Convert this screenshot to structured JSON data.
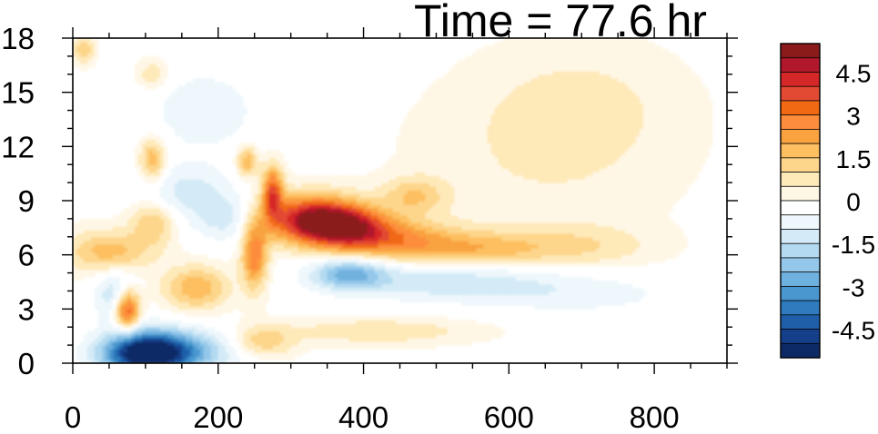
{
  "title": "Time = 77.6 hr",
  "chart_data": {
    "type": "heatmap",
    "title": "Time = 77.6 hr",
    "xlabel": "",
    "ylabel": "",
    "xlim": [
      0,
      900
    ],
    "ylim": [
      0,
      18
    ],
    "x_ticks": [
      0,
      200,
      400,
      600,
      800
    ],
    "y_ticks": [
      0,
      3,
      6,
      9,
      12,
      15,
      18
    ],
    "grid": false,
    "colorbar": {
      "placement": "right",
      "levels": [
        -5.5,
        -5,
        -4.5,
        -4,
        -3.5,
        -3,
        -2.5,
        -2,
        -1.5,
        -1,
        -0.5,
        0,
        0.5,
        1,
        1.5,
        2,
        2.5,
        3,
        3.5,
        4,
        4.5,
        5,
        5.5
      ],
      "labels": [
        "4.5",
        "3",
        "1.5",
        "0",
        "-1.5",
        "-3",
        "-4.5"
      ],
      "label_values": [
        4.5,
        3,
        1.5,
        0,
        -1.5,
        -3,
        -4.5
      ],
      "colors": [
        "#8b1a1a",
        "#b2182b",
        "#d62728",
        "#e34a33",
        "#f16913",
        "#fd8d3c",
        "#f9a23f",
        "#fdbf60",
        "#fdd68b",
        "#fee9b9",
        "#fff7e6",
        "#ffffff",
        "#eef7fc",
        "#d4ebf7",
        "#b4daf1",
        "#94c8ea",
        "#6fb1de",
        "#4a97cf",
        "#2f7bbd",
        "#1f5ea8",
        "#163f8a",
        "#0d2a66"
      ]
    },
    "features": [
      {
        "x": 330,
        "y": 8.0,
        "sx": 45,
        "sy": 0.9,
        "v": 4.8
      },
      {
        "x": 380,
        "y": 7.5,
        "sx": 40,
        "sy": 0.8,
        "v": 3.5
      },
      {
        "x": 450,
        "y": 6.8,
        "sx": 55,
        "sy": 0.8,
        "v": 2.3
      },
      {
        "x": 560,
        "y": 6.3,
        "sx": 60,
        "sy": 0.7,
        "v": 1.6
      },
      {
        "x": 690,
        "y": 6.5,
        "sx": 70,
        "sy": 0.8,
        "v": 1.0
      },
      {
        "x": 470,
        "y": 9.3,
        "sx": 30,
        "sy": 0.7,
        "v": 1.5
      },
      {
        "x": 650,
        "y": 11.5,
        "sx": 120,
        "sy": 3.0,
        "v": 0.5
      },
      {
        "x": 700,
        "y": 14.5,
        "sx": 90,
        "sy": 2.2,
        "v": 0.5
      },
      {
        "x": 510,
        "y": 4.6,
        "sx": 110,
        "sy": 0.8,
        "v": -1.4
      },
      {
        "x": 380,
        "y": 5.0,
        "sx": 35,
        "sy": 0.6,
        "v": -2.4
      },
      {
        "x": 700,
        "y": 3.8,
        "sx": 100,
        "sy": 0.8,
        "v": -0.7
      },
      {
        "x": 100,
        "y": 0.5,
        "sx": 40,
        "sy": 0.9,
        "v": -4.8
      },
      {
        "x": 140,
        "y": 0.7,
        "sx": 60,
        "sy": 0.8,
        "v": -2.5
      },
      {
        "x": 75,
        "y": 3.0,
        "sx": 12,
        "sy": 0.8,
        "v": 4.0
      },
      {
        "x": 170,
        "y": 4.2,
        "sx": 30,
        "sy": 0.8,
        "v": 2.0
      },
      {
        "x": 250,
        "y": 6.0,
        "sx": 12,
        "sy": 1.3,
        "v": 3.0
      },
      {
        "x": 275,
        "y": 9.5,
        "sx": 10,
        "sy": 1.0,
        "v": 3.5
      },
      {
        "x": 240,
        "y": 11.2,
        "sx": 10,
        "sy": 0.6,
        "v": 2.0
      },
      {
        "x": 110,
        "y": 11.3,
        "sx": 12,
        "sy": 0.8,
        "v": 2.0
      },
      {
        "x": 50,
        "y": 6.2,
        "sx": 40,
        "sy": 0.8,
        "v": 1.8
      },
      {
        "x": 210,
        "y": 8.0,
        "sx": 30,
        "sy": 0.9,
        "v": -1.2
      },
      {
        "x": 160,
        "y": 9.5,
        "sx": 40,
        "sy": 1.0,
        "v": -1.2
      },
      {
        "x": 180,
        "y": 14.0,
        "sx": 60,
        "sy": 1.8,
        "v": -0.8
      },
      {
        "x": 60,
        "y": 3.8,
        "sx": 20,
        "sy": 1.0,
        "v": -1.6
      },
      {
        "x": 110,
        "y": 7.8,
        "sx": 20,
        "sy": 0.8,
        "v": 1.5
      },
      {
        "x": 15,
        "y": 17.4,
        "sx": 10,
        "sy": 0.5,
        "v": 1.5
      },
      {
        "x": 110,
        "y": 16.0,
        "sx": 15,
        "sy": 0.6,
        "v": 1.0
      },
      {
        "x": 420,
        "y": 1.8,
        "sx": 90,
        "sy": 0.5,
        "v": 0.9
      },
      {
        "x": 260,
        "y": 1.2,
        "sx": 30,
        "sy": 0.6,
        "v": 1.5
      },
      {
        "x": 400,
        "y": 17.0,
        "sx": 40,
        "sy": 1.0,
        "v": -0.4
      }
    ]
  }
}
